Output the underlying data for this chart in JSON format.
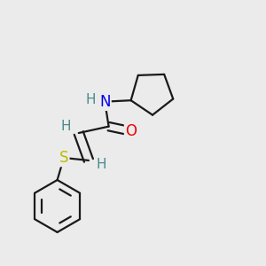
{
  "background_color": "#ebebeb",
  "atom_colors": {
    "C": "#1a1a1a",
    "H": "#4a8a8a",
    "N": "#0000ee",
    "O": "#ee0000",
    "S": "#bbbb00"
  },
  "bond_color": "#1a1a1a",
  "bond_width": 1.6,
  "figsize": [
    3.0,
    3.0
  ],
  "dpi": 100,
  "xlim": [
    0.0,
    1.0
  ],
  "ylim": [
    0.0,
    1.0
  ]
}
